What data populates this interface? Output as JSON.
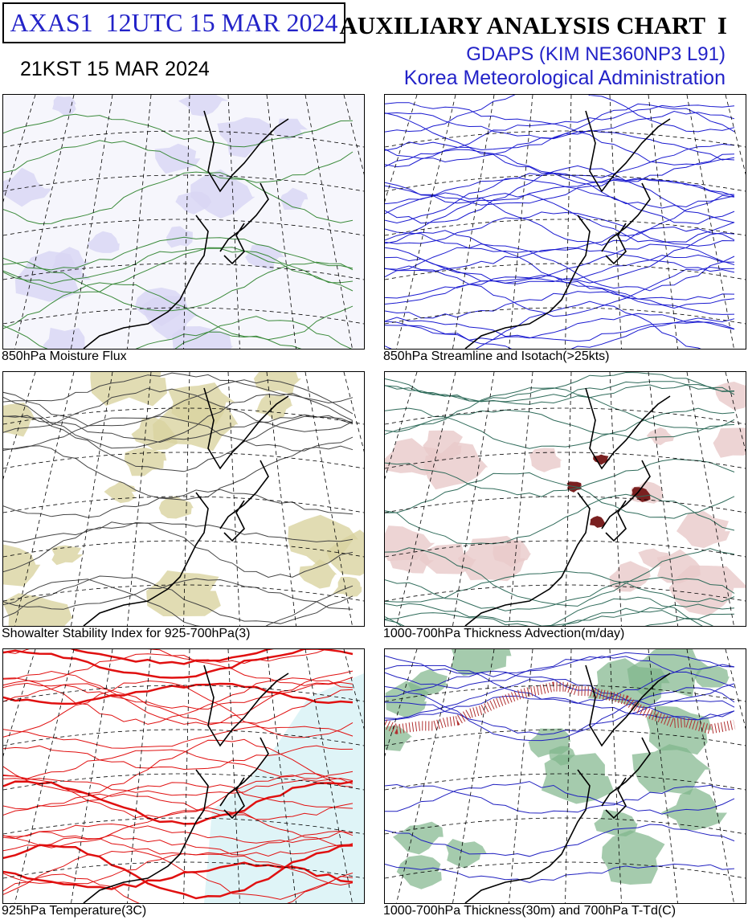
{
  "header": {
    "code": "AXAS1  12UTC 15 MAR 2024",
    "local_time": "21KST 15 MAR 2024",
    "title": "AUXILIARY ANALYSIS CHART  I",
    "model": "GDAPS (KIM NE360NP3 L91)",
    "agency": "Korea Meteorological Administration"
  },
  "panels": [
    {
      "caption": "850hPa Moisture Flux"
    },
    {
      "caption": "850hPa Streamline and Isotach(>25kts)"
    },
    {
      "caption": "Showalter Stability Index for 925-700hPa(3)"
    },
    {
      "caption": "1000-700hPa Thickness Advection(m/day)"
    },
    {
      "caption": "925hPa Temperature(3C)"
    },
    {
      "caption": "1000-700hPa Thickness(30m) and 700hPa T-Td(C)"
    }
  ]
}
